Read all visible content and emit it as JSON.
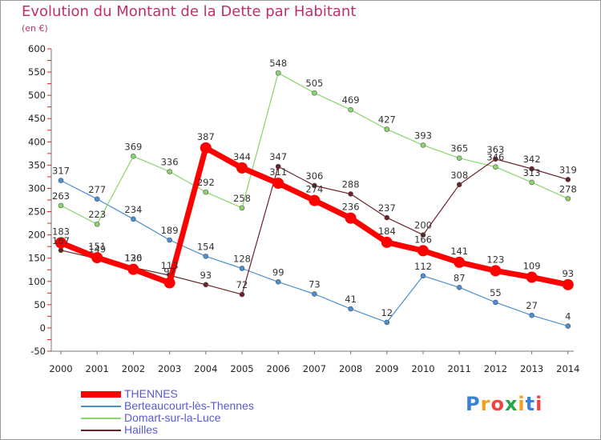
{
  "title": "Evolution du Montant de la Dette par Habitant",
  "subtitle": "(en €)",
  "logo": "Proxiti",
  "colors": {
    "title": "#c0306a",
    "legend_text": "#5a5acf",
    "tick_text": "#222222"
  },
  "chart_data": {
    "type": "line",
    "x": [
      2000,
      2001,
      2002,
      2003,
      2004,
      2005,
      2006,
      2007,
      2008,
      2009,
      2010,
      2011,
      2012,
      2013,
      2014
    ],
    "ylim": [
      -50,
      600
    ],
    "yticks": [
      -50,
      0,
      50,
      100,
      150,
      200,
      250,
      300,
      350,
      400,
      450,
      500,
      550,
      600
    ],
    "grid": false,
    "legend_position": "bottom-left",
    "series": [
      {
        "name": "THENNES",
        "color": "#ff0000",
        "width": 7,
        "marker": 7,
        "values": [
          183,
          151,
          126,
          97,
          387,
          344,
          311,
          274,
          236,
          184,
          166,
          141,
          123,
          109,
          93
        ],
        "labels": [
          "183",
          "151",
          "126",
          "97",
          "387",
          "344",
          "311",
          "274",
          "236",
          "184",
          "166",
          "141",
          "123",
          "109",
          "93"
        ]
      },
      {
        "name": "Berteaucourt-lès-Thennes",
        "color": "#4a8fd0",
        "width": 1.2,
        "marker": 3,
        "values": [
          317,
          277,
          234,
          189,
          154,
          128,
          99,
          73,
          41,
          12,
          112,
          87,
          55,
          27,
          4
        ],
        "labels": [
          "317",
          "277",
          "234",
          "189",
          "154",
          "128",
          "99",
          "73",
          "41",
          "12",
          "112",
          "87",
          "55",
          "27",
          "4"
        ]
      },
      {
        "name": "Domart-sur-la-Luce",
        "color": "#88d66c",
        "width": 1.2,
        "marker": 3,
        "values": [
          263,
          223,
          369,
          336,
          292,
          258,
          null,
          505,
          469,
          427,
          393,
          365,
          346,
          313,
          278
        ],
        "values_2006": 548,
        "labels": [
          "263",
          "223",
          "369",
          "336",
          "292",
          "258",
          "548",
          "505",
          "469",
          "427",
          "393",
          "365",
          "346",
          "313",
          "278"
        ]
      },
      {
        "name": "Hailles",
        "color": "#6b2226",
        "width": 1.2,
        "marker": 3,
        "values": [
          167,
          149,
          130,
          113,
          93,
          72,
          347,
          306,
          288,
          237,
          200,
          308,
          363,
          342,
          319
        ],
        "labels": [
          "167",
          "149",
          "130",
          "113",
          "93",
          "72",
          "347",
          "306",
          "288",
          "237",
          "200",
          "308",
          "363",
          "342",
          "319"
        ]
      }
    ]
  }
}
